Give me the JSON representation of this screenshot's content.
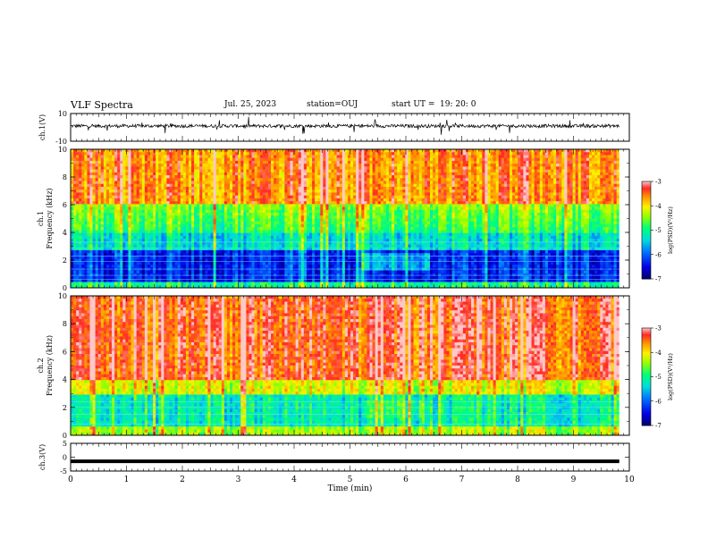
{
  "header": {
    "title": "VLF Spectra",
    "date": "Jul. 25, 2023",
    "station": "station=OUJ",
    "start_label": "start UT =",
    "start_time": "19: 20: 0"
  },
  "colors": {
    "spectrogram_low": "#00008b",
    "spectrogram_mid": "#00ff80",
    "spectrogram_high": "#ff2a2a",
    "waveform": "#000000"
  },
  "chart_data": [
    {
      "type": "line",
      "panel": "ch.1 waveform",
      "ylabel": "ch.1(V)",
      "ylim": [
        -10,
        10
      ],
      "yticks": [
        "10",
        "-10"
      ],
      "xlim": [
        0,
        10
      ],
      "series": [
        {
          "values_description_level": 1.0,
          "x_end": 9.82
        }
      ]
    },
    {
      "type": "heatmap",
      "panel": "ch.1 spectrogram",
      "ylabel_channel": "ch.1",
      "ylabel": "Frequency (kHz)",
      "ylim": [
        0,
        10
      ],
      "yticks": [
        "0",
        "2",
        "4",
        "6",
        "8",
        "10"
      ],
      "xlim": [
        0,
        10
      ],
      "x_end": 9.82,
      "colorbar": {
        "label": "log(PSD)(V²/Hz)",
        "range": [
          -7,
          -3
        ],
        "ticks": [
          "-3",
          "-4",
          "-5",
          "-6",
          "-7"
        ]
      }
    },
    {
      "type": "heatmap",
      "panel": "ch.2 spectrogram",
      "ylabel_channel": "ch.2",
      "ylabel": "Frequency (kHz)",
      "ylim": [
        0,
        10
      ],
      "yticks": [
        "0",
        "2",
        "4",
        "6",
        "8",
        "10"
      ],
      "xlim": [
        0,
        10
      ],
      "x_end": 9.82,
      "colorbar": {
        "label": "log(PSD)(V²/Hz)",
        "range": [
          -7,
          -3
        ],
        "ticks": [
          "-3",
          "-4",
          "-5",
          "-6",
          "-7"
        ]
      }
    },
    {
      "type": "line",
      "panel": "ch.3 waveform",
      "ylabel": "ch.3(V)",
      "ylim": [
        -5,
        5
      ],
      "yticks": [
        "5",
        "0",
        "-5"
      ],
      "xlim": [
        0,
        10
      ],
      "series": [
        {
          "constant_value": -1.5,
          "x_end": 9.82
        }
      ]
    }
  ],
  "xaxis": {
    "label": "Time (min)",
    "ticks": [
      "0",
      "1",
      "2",
      "3",
      "4",
      "5",
      "6",
      "7",
      "8",
      "9",
      "10"
    ]
  }
}
